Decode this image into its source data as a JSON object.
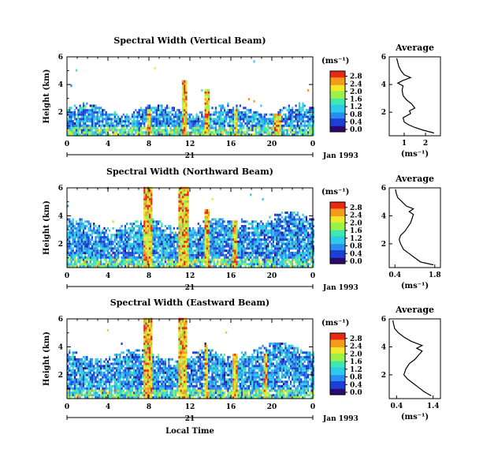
{
  "chart_data": [
    {
      "type": "heatmap",
      "title": "Spectral Width (Vertical Beam)",
      "xlabel": "",
      "ylabel": "Height (km)",
      "x_ticks": [
        "0",
        "4",
        "8",
        "12",
        "16",
        "20",
        "0"
      ],
      "x_range": [
        0,
        24
      ],
      "y_ticks": [
        "2",
        "4",
        "6"
      ],
      "y_range": [
        0.3,
        6.0
      ],
      "date_label": "21",
      "date_suffix": "Jan 1993",
      "colorbar": {
        "unit": "(ms⁻¹)",
        "ticks": [
          "0.0",
          "0.4",
          "0.8",
          "1.2",
          "1.6",
          "2.0",
          "2.4",
          "2.8"
        ]
      },
      "average": {
        "title": "Average",
        "xlabel": "(ms⁻¹)",
        "x_ticks": [
          "1",
          "2"
        ],
        "x_tick_values": [
          1,
          2
        ],
        "x_range": [
          0.3,
          2.7
        ],
        "profile": [
          [
            2.4,
            0.5
          ],
          [
            1.9,
            0.7
          ],
          [
            1.5,
            0.9
          ],
          [
            1.2,
            1.1
          ],
          [
            1.0,
            1.3
          ],
          [
            0.95,
            1.6
          ],
          [
            1.3,
            1.9
          ],
          [
            1.25,
            2.1
          ],
          [
            1.5,
            2.3
          ],
          [
            1.35,
            2.6
          ],
          [
            1.1,
            2.9
          ],
          [
            0.95,
            3.2
          ],
          [
            0.9,
            3.6
          ],
          [
            0.95,
            3.9
          ],
          [
            0.7,
            4.1
          ],
          [
            0.95,
            4.3
          ],
          [
            1.3,
            4.5
          ],
          [
            1.0,
            4.7
          ],
          [
            0.85,
            5.0
          ],
          [
            0.75,
            5.3
          ],
          [
            0.7,
            5.6
          ],
          [
            0.65,
            5.9
          ]
        ]
      }
    },
    {
      "type": "heatmap",
      "title": "Spectral Width (Northward Beam)",
      "xlabel": "",
      "ylabel": "Height (km)",
      "x_ticks": [
        "0",
        "4",
        "8",
        "12",
        "16",
        "20",
        "0"
      ],
      "x_range": [
        0,
        24
      ],
      "y_ticks": [
        "2",
        "4",
        "6"
      ],
      "y_range": [
        0.3,
        6.0
      ],
      "date_label": "21",
      "date_suffix": "Jan 1993",
      "colorbar": {
        "unit": "(ms⁻¹)",
        "ticks": [
          "0.0",
          "0.4",
          "0.8",
          "1.2",
          "1.6",
          "2.0",
          "2.4",
          "2.8"
        ]
      },
      "average": {
        "title": "Average",
        "xlabel": "(ms⁻¹)",
        "x_ticks": [
          "0.4",
          "1.8"
        ],
        "x_tick_values": [
          0.4,
          1.8
        ],
        "x_range": [
          0.2,
          2.0
        ],
        "profile": [
          [
            1.75,
            0.5
          ],
          [
            1.3,
            0.7
          ],
          [
            1.1,
            1.0
          ],
          [
            0.9,
            1.3
          ],
          [
            0.7,
            1.6
          ],
          [
            0.6,
            2.0
          ],
          [
            0.55,
            2.3
          ],
          [
            0.6,
            2.6
          ],
          [
            0.75,
            2.9
          ],
          [
            0.85,
            3.2
          ],
          [
            0.95,
            3.5
          ],
          [
            1.0,
            3.8
          ],
          [
            1.05,
            4.1
          ],
          [
            0.9,
            4.3
          ],
          [
            1.05,
            4.5
          ],
          [
            0.8,
            4.7
          ],
          [
            0.65,
            5.0
          ],
          [
            0.5,
            5.3
          ],
          [
            0.45,
            5.6
          ],
          [
            0.42,
            5.9
          ]
        ]
      }
    },
    {
      "type": "heatmap",
      "title": "Spectral Width (Eastward Beam)",
      "xlabel": "Local Time",
      "ylabel": "Height (km)",
      "x_ticks": [
        "0",
        "4",
        "8",
        "12",
        "16",
        "20",
        "0"
      ],
      "x_range": [
        0,
        24
      ],
      "y_ticks": [
        "2",
        "4",
        "6"
      ],
      "y_range": [
        0.3,
        6.0
      ],
      "date_label": "21",
      "date_suffix": "Jan 1993",
      "colorbar": {
        "unit": "(ms⁻¹)",
        "ticks": [
          "0.0",
          "0.4",
          "0.8",
          "1.2",
          "1.6",
          "2.0",
          "2.4",
          "2.8"
        ]
      },
      "average": {
        "title": "Average",
        "xlabel": "(ms⁻¹)",
        "x_ticks": [
          "0.4",
          "1.4"
        ],
        "x_tick_values": [
          0.4,
          1.4
        ],
        "x_range": [
          0.2,
          1.6
        ],
        "profile": [
          [
            1.35,
            0.5
          ],
          [
            1.15,
            0.8
          ],
          [
            1.0,
            1.1
          ],
          [
            0.85,
            1.4
          ],
          [
            0.7,
            1.7
          ],
          [
            0.6,
            2.0
          ],
          [
            0.65,
            2.4
          ],
          [
            0.75,
            2.8
          ],
          [
            0.9,
            3.1
          ],
          [
            1.0,
            3.4
          ],
          [
            1.1,
            3.7
          ],
          [
            0.95,
            3.9
          ],
          [
            1.1,
            4.1
          ],
          [
            0.8,
            4.4
          ],
          [
            0.6,
            4.7
          ],
          [
            0.45,
            5.0
          ],
          [
            0.35,
            5.3
          ],
          [
            0.32,
            5.6
          ],
          [
            0.3,
            5.9
          ]
        ]
      }
    }
  ],
  "colorscale": [
    "#2a0a6e",
    "#1d3fd6",
    "#2a8cf0",
    "#2ecbe8",
    "#3ee8b0",
    "#9cf04a",
    "#f0e82a",
    "#f59a1a",
    "#e82a14"
  ]
}
